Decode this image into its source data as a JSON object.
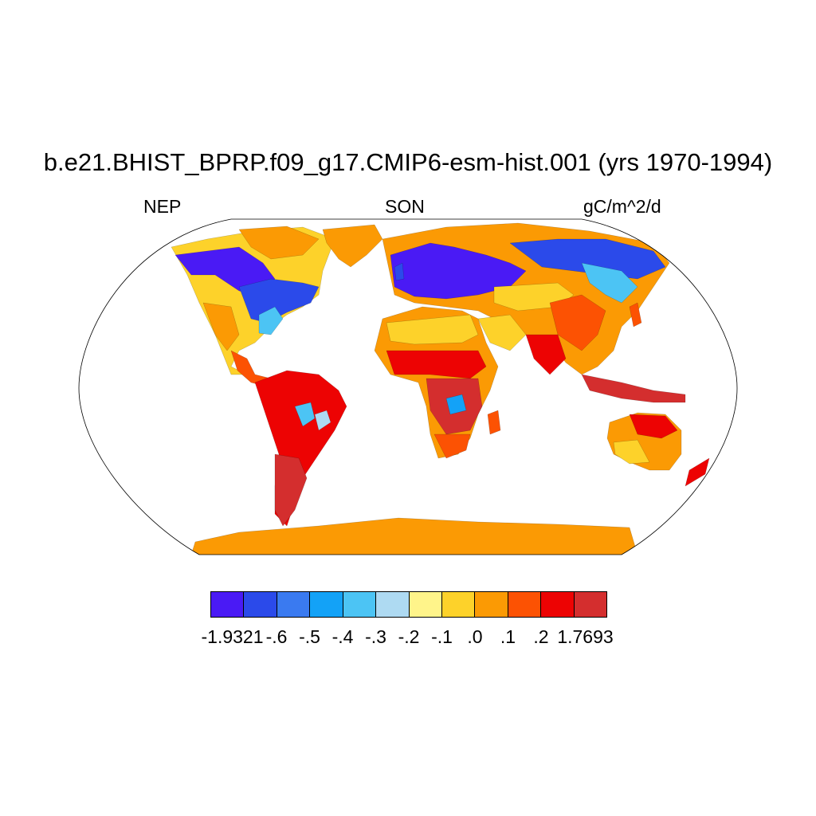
{
  "header": {
    "title": "b.e21.BHIST_BPRP.f09_g17.CMIP6-esm-hist.001 (yrs 1970-1994)",
    "left": "NEP",
    "center": "SON",
    "right": "gC/m^2/d"
  },
  "map": {
    "projection": "Robinson",
    "colors": {
      "c1": "#4A1AF5",
      "c2": "#2B4AEA",
      "c3": "#3A7AF0",
      "c4": "#13A2F7",
      "c5": "#4CC4F4",
      "c6": "#AEDAF2",
      "c7": "#FFF48A",
      "c8": "#FDD22A",
      "c9": "#FB9A04",
      "c10": "#FC5203",
      "c11": "#ED0303",
      "c12": "#D42E2E"
    }
  },
  "colorbar": {
    "colors": [
      "#4A1AF5",
      "#2B4AEA",
      "#3A7AF0",
      "#13A2F7",
      "#4CC4F4",
      "#AEDAF2",
      "#FFF48A",
      "#FDD22A",
      "#FB9A04",
      "#FC5203",
      "#ED0303",
      "#D42E2E"
    ],
    "labels": [
      "-1.9321",
      "-.6",
      "-.5",
      "-.4",
      "-.3",
      "-.2",
      "-.1",
      ".0",
      ".1",
      ".2",
      "1.7693"
    ]
  }
}
